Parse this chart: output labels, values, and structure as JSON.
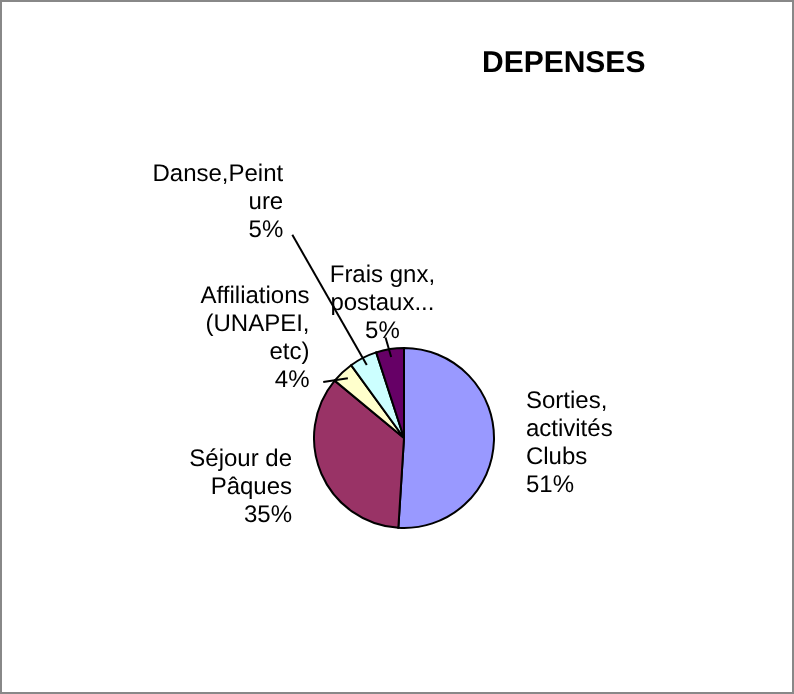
{
  "chart_data": {
    "type": "pie",
    "title": "DEPENSES",
    "categories": [
      "Sorties, activités Clubs",
      "Séjour de Pâques",
      "Affiliations (UNAPEI, etc)",
      "Danse,Peinture",
      "Frais gnx, postaux..."
    ],
    "values": [
      51,
      35,
      4,
      5,
      5
    ],
    "colors": [
      "#9999ff",
      "#993366",
      "#ffffcc",
      "#ccffff",
      "#660066"
    ],
    "value_labels": [
      "51%",
      "35%",
      "4%",
      "5%",
      "5%"
    ]
  }
}
